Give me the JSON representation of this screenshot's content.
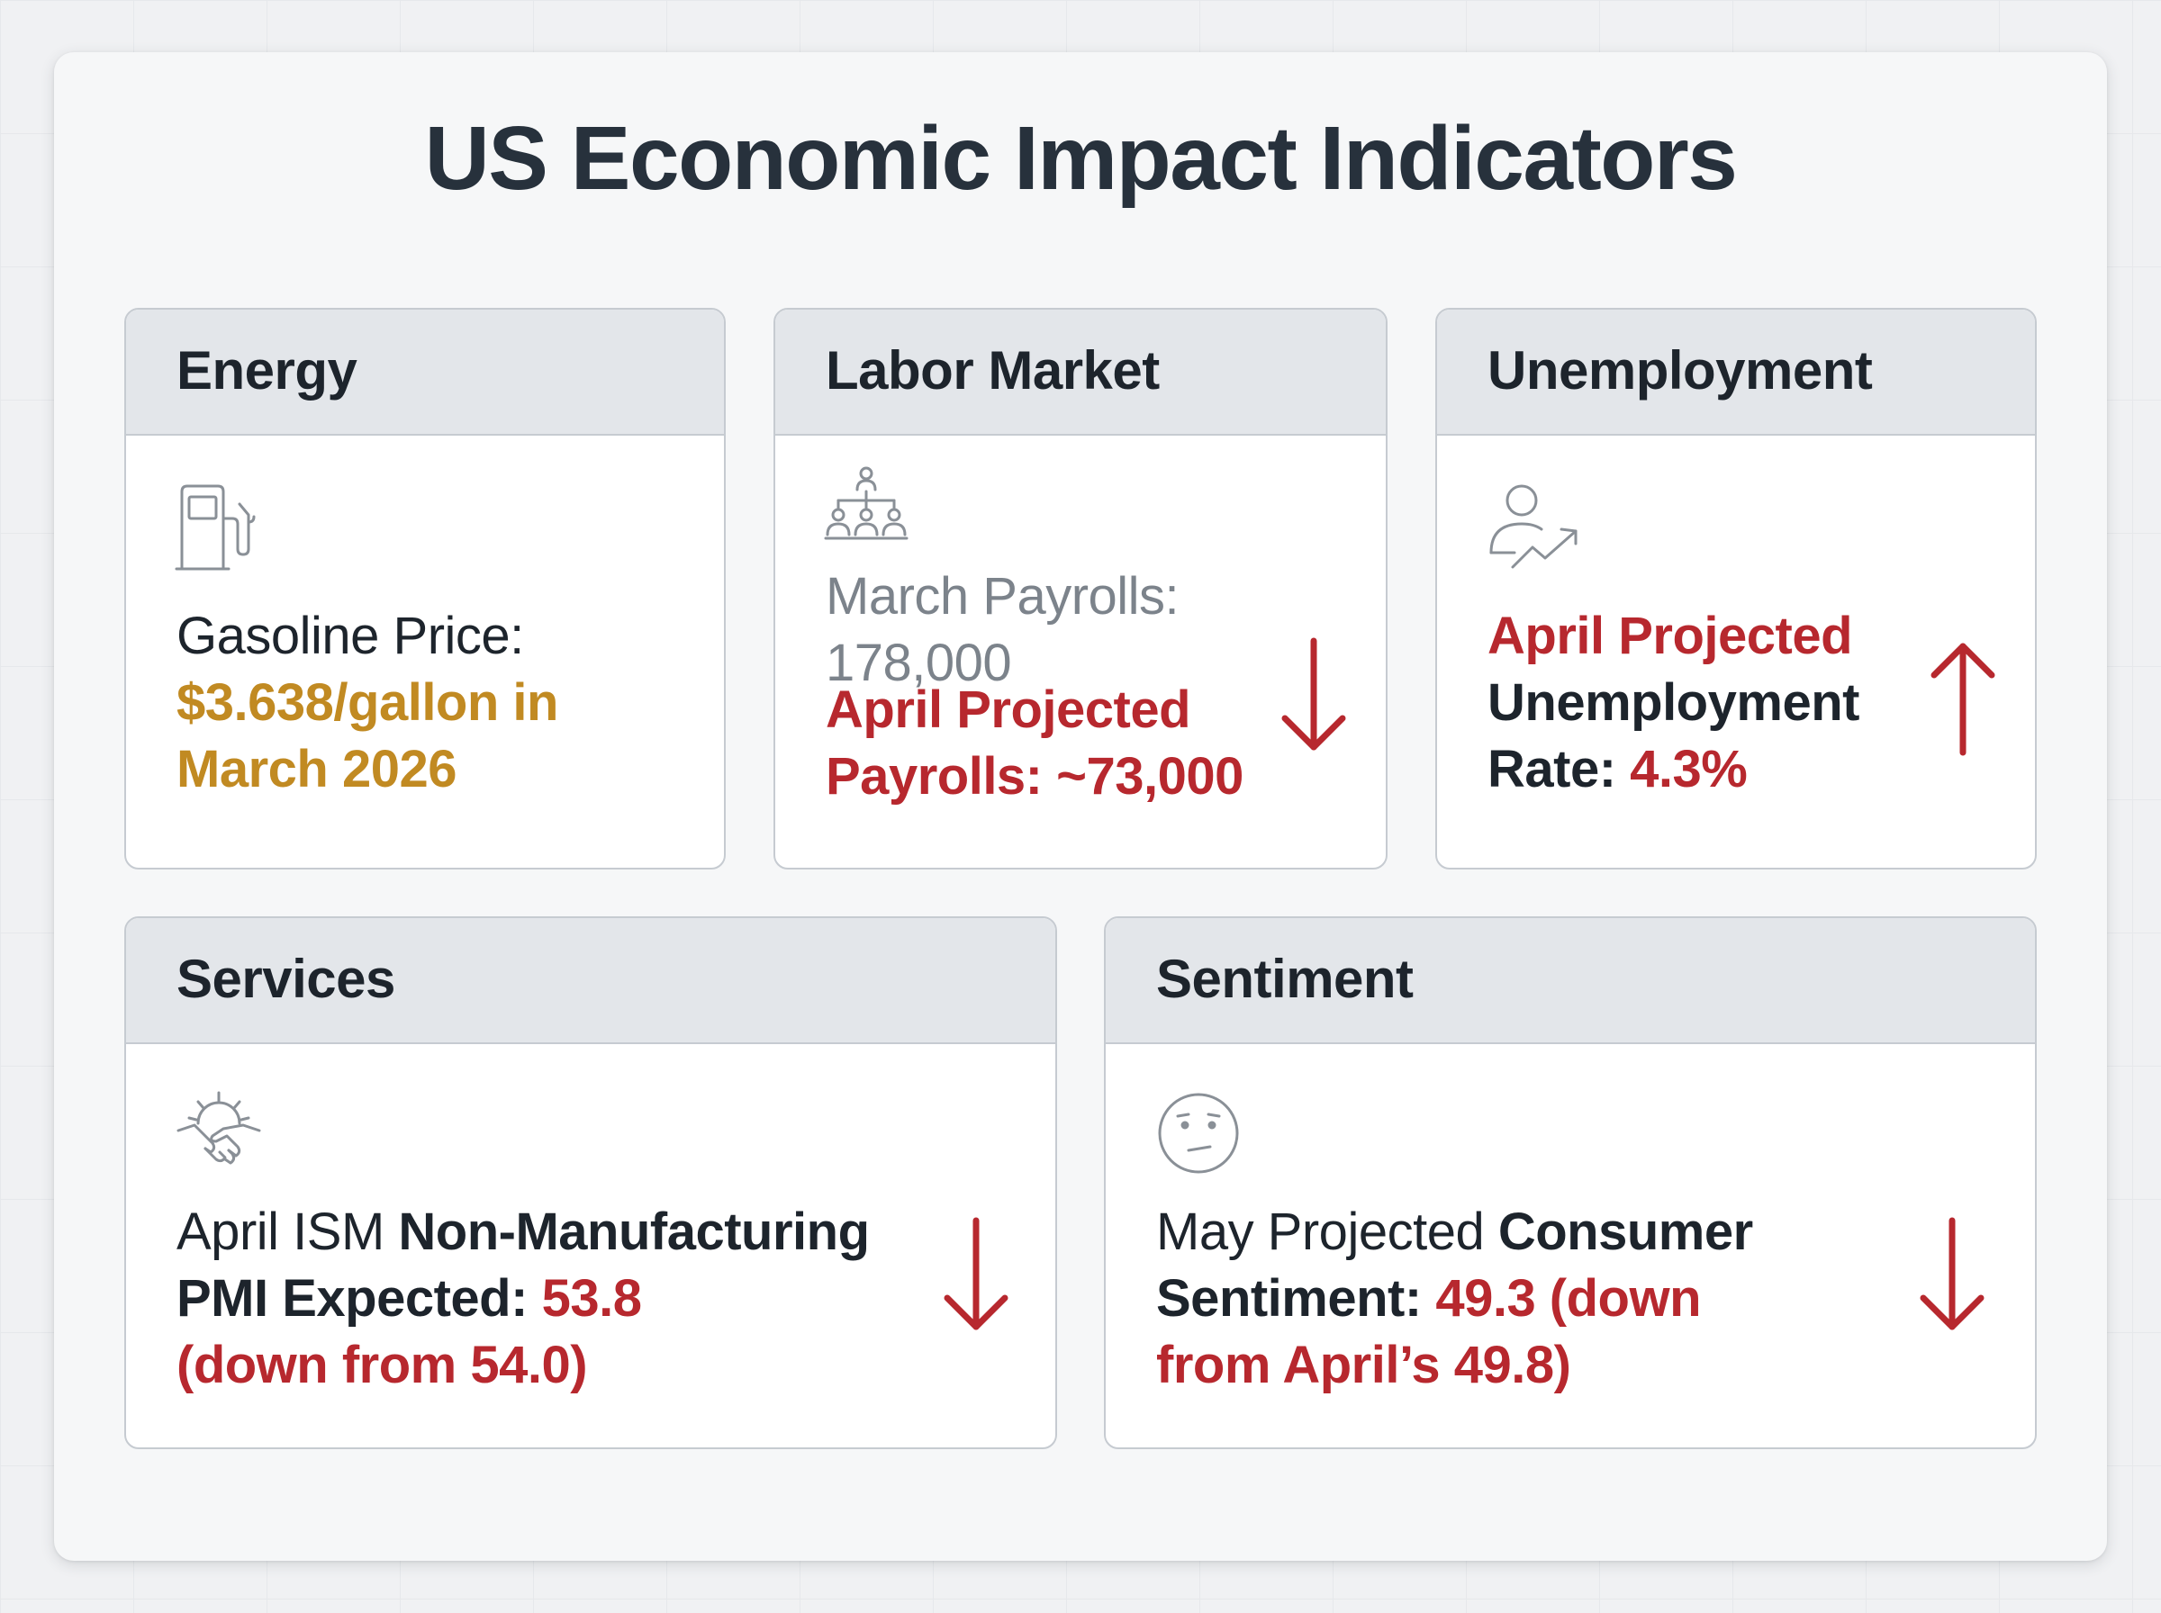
{
  "title": "US Economic Impact Indicators",
  "colors": {
    "accent_red": "#b7282e",
    "accent_gold": "#c18a22",
    "header_bg": "#e3e6ea",
    "text_dark": "#1d242c"
  },
  "cards": {
    "energy": {
      "title": "Energy",
      "icon": "fuel-pump-icon",
      "label": "Gasoline Price:",
      "value_line1": "$3.638/gallon in",
      "value_line2": "March 2026"
    },
    "labor": {
      "title": "Labor Market",
      "icon": "org-chart-icon",
      "march_line1": "March Payrolls:",
      "march_line2": "178,000",
      "april_line1": "April Projected",
      "april_line2": "Payrolls: ~73,000",
      "trend": "down"
    },
    "unemployment": {
      "title": "Unemployment",
      "icon": "person-trend-up-icon",
      "line1": "April Projected",
      "line2": "Unemployment",
      "line3_label": "Rate:",
      "line3_value": "4.3%",
      "trend": "up"
    },
    "services": {
      "title": "Services",
      "icon": "handshake-gear-icon",
      "line1_regular": "April ISM",
      "line1_bold": "Non-Manufacturing",
      "line2_bold": "PMI Expected:",
      "line2_value": "53.8",
      "line3": "(down from 54.0)",
      "trend": "down"
    },
    "sentiment": {
      "title": "Sentiment",
      "icon": "neutral-face-icon",
      "line1_regular": "May Projected",
      "line1_bold": "Consumer",
      "line2_bold": "Sentiment:",
      "line2_value": "49.3 (down",
      "line3": "from April’s 49.8)",
      "trend": "down"
    }
  }
}
